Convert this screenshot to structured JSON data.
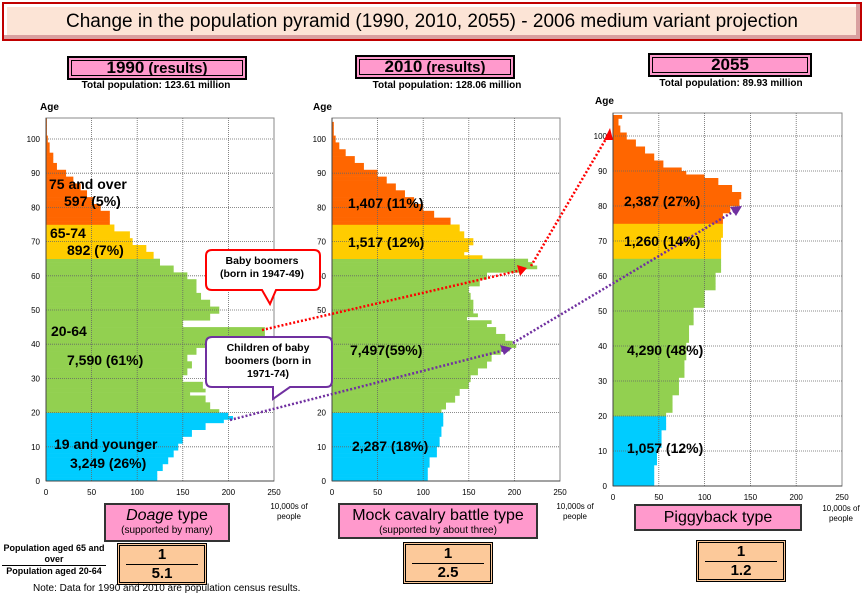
{
  "title": "Change in the population pyramid (1990, 2010, 2055)  - 2006 medium variant projection",
  "colors": {
    "age75": "#ff6600",
    "age65": "#ffcc00",
    "age20": "#92d050",
    "age0": "#00ccff",
    "pink": "#ff99cc",
    "ratio": "#fcc99a",
    "callout_red": "#ff0000",
    "callout_purple": "#7030a0"
  },
  "panels": [
    {
      "year": "1990",
      "year_suffix": "(results)",
      "total": "Total population: 123.61 million",
      "type_main": "Doage",
      "type_main_rest": " type",
      "type_sub": "(supported by many)",
      "ratio_num": "1",
      "ratio_den": "5.1",
      "unit": "10,000s of people"
    },
    {
      "year": "2010",
      "year_suffix": "(results)",
      "total": "Total population: 128.06 million",
      "type_main": "Mock cavalry battle type",
      "type_main_rest": "",
      "type_sub": "(supported by about three)",
      "ratio_num": "1",
      "ratio_den": "2.5",
      "unit": "10,000s of people"
    },
    {
      "year": "2055",
      "year_suffix": "",
      "total": "Total population: 89.93 million",
      "type_main": "Piggyback type",
      "type_main_rest": "",
      "type_sub": "",
      "ratio_num": "1",
      "ratio_den": "1.2",
      "unit": "10,000s of people"
    }
  ],
  "ratio_label": {
    "top": "Population aged 65 and over",
    "bottom": "Population aged 20-64"
  },
  "note": "Note: Data for 1990 and 2010 are population census results.",
  "callouts": {
    "baby_boomers": "Baby boomers (born in 1947-49)",
    "children": "Children of baby boomers (born in 1971-74)"
  },
  "labels1990": {
    "age75_name": "75 and over",
    "age75_val": "597 (5%)",
    "age65_name": "65-74",
    "age65_val": "892 (7%)",
    "age20_name": "20-64",
    "age20_val": "7,590 (61%)",
    "age0_name": "19 and younger",
    "age0_val": "3,249 (26%)"
  },
  "labels2010": {
    "age75_val": "1,407 (11%)",
    "age65_val": "1,517 (12%)",
    "age20_val": "7,497(59%)",
    "age0_val": "2,287 (18%)"
  },
  "labels2055": {
    "age75_val": "2,387 (27%)",
    "age65_val": "1,260 (14%)",
    "age20_val": "4,290 (48%)",
    "age0_val": "1,057 (12%)"
  },
  "chart_data": [
    {
      "type": "bar",
      "title": "1990 (results)",
      "xlabel": "10,000s of people",
      "ylabel": "Age",
      "xlim": [
        0,
        250
      ],
      "ylim": [
        0,
        105
      ],
      "xticks": [
        0,
        50,
        100,
        150,
        200,
        250
      ],
      "yticks": [
        0,
        10,
        20,
        30,
        40,
        50,
        60,
        70,
        80,
        90,
        100
      ],
      "grid": true,
      "age_points": [
        [
          0,
          122
        ],
        [
          2,
          128
        ],
        [
          4,
          134
        ],
        [
          6,
          140
        ],
        [
          8,
          145
        ],
        [
          10,
          150
        ],
        [
          12,
          160
        ],
        [
          14,
          175
        ],
        [
          16,
          195
        ],
        [
          17,
          205
        ],
        [
          18,
          200
        ],
        [
          19,
          190
        ],
        [
          20,
          180
        ],
        [
          22,
          175
        ],
        [
          24,
          158
        ],
        [
          25,
          175
        ],
        [
          26,
          172
        ],
        [
          28,
          150
        ],
        [
          30,
          155
        ],
        [
          32,
          160
        ],
        [
          34,
          155
        ],
        [
          36,
          165
        ],
        [
          38,
          190
        ],
        [
          40,
          215
        ],
        [
          41,
          240
        ],
        [
          43,
          240
        ],
        [
          44,
          150
        ],
        [
          46,
          180
        ],
        [
          48,
          190
        ],
        [
          50,
          180
        ],
        [
          52,
          170
        ],
        [
          54,
          165
        ],
        [
          56,
          165
        ],
        [
          58,
          155
        ],
        [
          60,
          140
        ],
        [
          62,
          125
        ],
        [
          64,
          118
        ],
        [
          65,
          118
        ],
        [
          66,
          110
        ],
        [
          68,
          95
        ],
        [
          70,
          92
        ],
        [
          72,
          75
        ],
        [
          74,
          70
        ],
        [
          75,
          70
        ],
        [
          78,
          60
        ],
        [
          80,
          52
        ],
        [
          82,
          45
        ],
        [
          84,
          38
        ],
        [
          86,
          30
        ],
        [
          88,
          22
        ],
        [
          90,
          12
        ],
        [
          92,
          8
        ],
        [
          95,
          4
        ],
        [
          98,
          2
        ],
        [
          100,
          1
        ],
        [
          105,
          0
        ]
      ]
    },
    {
      "type": "bar",
      "title": "2010 (results)",
      "xlabel": "10,000s of people",
      "ylabel": "Age",
      "xlim": [
        0,
        250
      ],
      "ylim": [
        0,
        105
      ],
      "xticks": [
        0,
        50,
        100,
        150,
        200,
        250
      ],
      "yticks": [
        0,
        10,
        20,
        30,
        40,
        50,
        60,
        70,
        80,
        90,
        100
      ],
      "grid": true,
      "age_points": [
        [
          0,
          105
        ],
        [
          3,
          107
        ],
        [
          6,
          115
        ],
        [
          9,
          118
        ],
        [
          12,
          120
        ],
        [
          15,
          122
        ],
        [
          18,
          122
        ],
        [
          19,
          120
        ],
        [
          20,
          125
        ],
        [
          22,
          135
        ],
        [
          24,
          140
        ],
        [
          26,
          150
        ],
        [
          28,
          152
        ],
        [
          30,
          160
        ],
        [
          32,
          170
        ],
        [
          34,
          175
        ],
        [
          36,
          185
        ],
        [
          37,
          195
        ],
        [
          38,
          202
        ],
        [
          39,
          198
        ],
        [
          40,
          190
        ],
        [
          42,
          180
        ],
        [
          44,
          170
        ],
        [
          45,
          175
        ],
        [
          46,
          148
        ],
        [
          47,
          160
        ],
        [
          48,
          155
        ],
        [
          50,
          155
        ],
        [
          52,
          152
        ],
        [
          54,
          150
        ],
        [
          56,
          162
        ],
        [
          58,
          170
        ],
        [
          60,
          205
        ],
        [
          61,
          225
        ],
        [
          62,
          220
        ],
        [
          63,
          215
        ],
        [
          64,
          165
        ],
        [
          65,
          145
        ],
        [
          66,
          150
        ],
        [
          68,
          155
        ],
        [
          70,
          145
        ],
        [
          72,
          140
        ],
        [
          74,
          130
        ],
        [
          75,
          130
        ],
        [
          76,
          112
        ],
        [
          78,
          100
        ],
        [
          80,
          90
        ],
        [
          82,
          80
        ],
        [
          84,
          70
        ],
        [
          86,
          60
        ],
        [
          88,
          50
        ],
        [
          90,
          35
        ],
        [
          92,
          25
        ],
        [
          94,
          15
        ],
        [
          96,
          8
        ],
        [
          98,
          4
        ],
        [
          100,
          2
        ],
        [
          104,
          0
        ]
      ]
    },
    {
      "type": "bar",
      "title": "2055",
      "xlabel": "10,000s of people",
      "ylabel": "Age",
      "xlim": [
        0,
        250
      ],
      "ylim": [
        0,
        105
      ],
      "xticks": [
        0,
        50,
        100,
        150,
        200,
        250
      ],
      "yticks": [
        0,
        10,
        20,
        30,
        40,
        50,
        60,
        70,
        80,
        90,
        100
      ],
      "grid": true,
      "age_points": [
        [
          0,
          45
        ],
        [
          5,
          48
        ],
        [
          10,
          53
        ],
        [
          15,
          58
        ],
        [
          20,
          65
        ],
        [
          25,
          72
        ],
        [
          30,
          78
        ],
        [
          35,
          80
        ],
        [
          40,
          83
        ],
        [
          45,
          88
        ],
        [
          50,
          100
        ],
        [
          55,
          112
        ],
        [
          60,
          118
        ],
        [
          65,
          118
        ],
        [
          70,
          120
        ],
        [
          75,
          120
        ],
        [
          77,
          128
        ],
        [
          79,
          138
        ],
        [
          81,
          140
        ],
        [
          83,
          130
        ],
        [
          85,
          115
        ],
        [
          87,
          100
        ],
        [
          88,
          80
        ],
        [
          89,
          75
        ],
        [
          90,
          55
        ],
        [
          92,
          45
        ],
        [
          94,
          35
        ],
        [
          96,
          25
        ],
        [
          98,
          15
        ],
        [
          100,
          8
        ],
        [
          102,
          6
        ],
        [
          104,
          10
        ],
        [
          106,
          0
        ]
      ]
    }
  ]
}
